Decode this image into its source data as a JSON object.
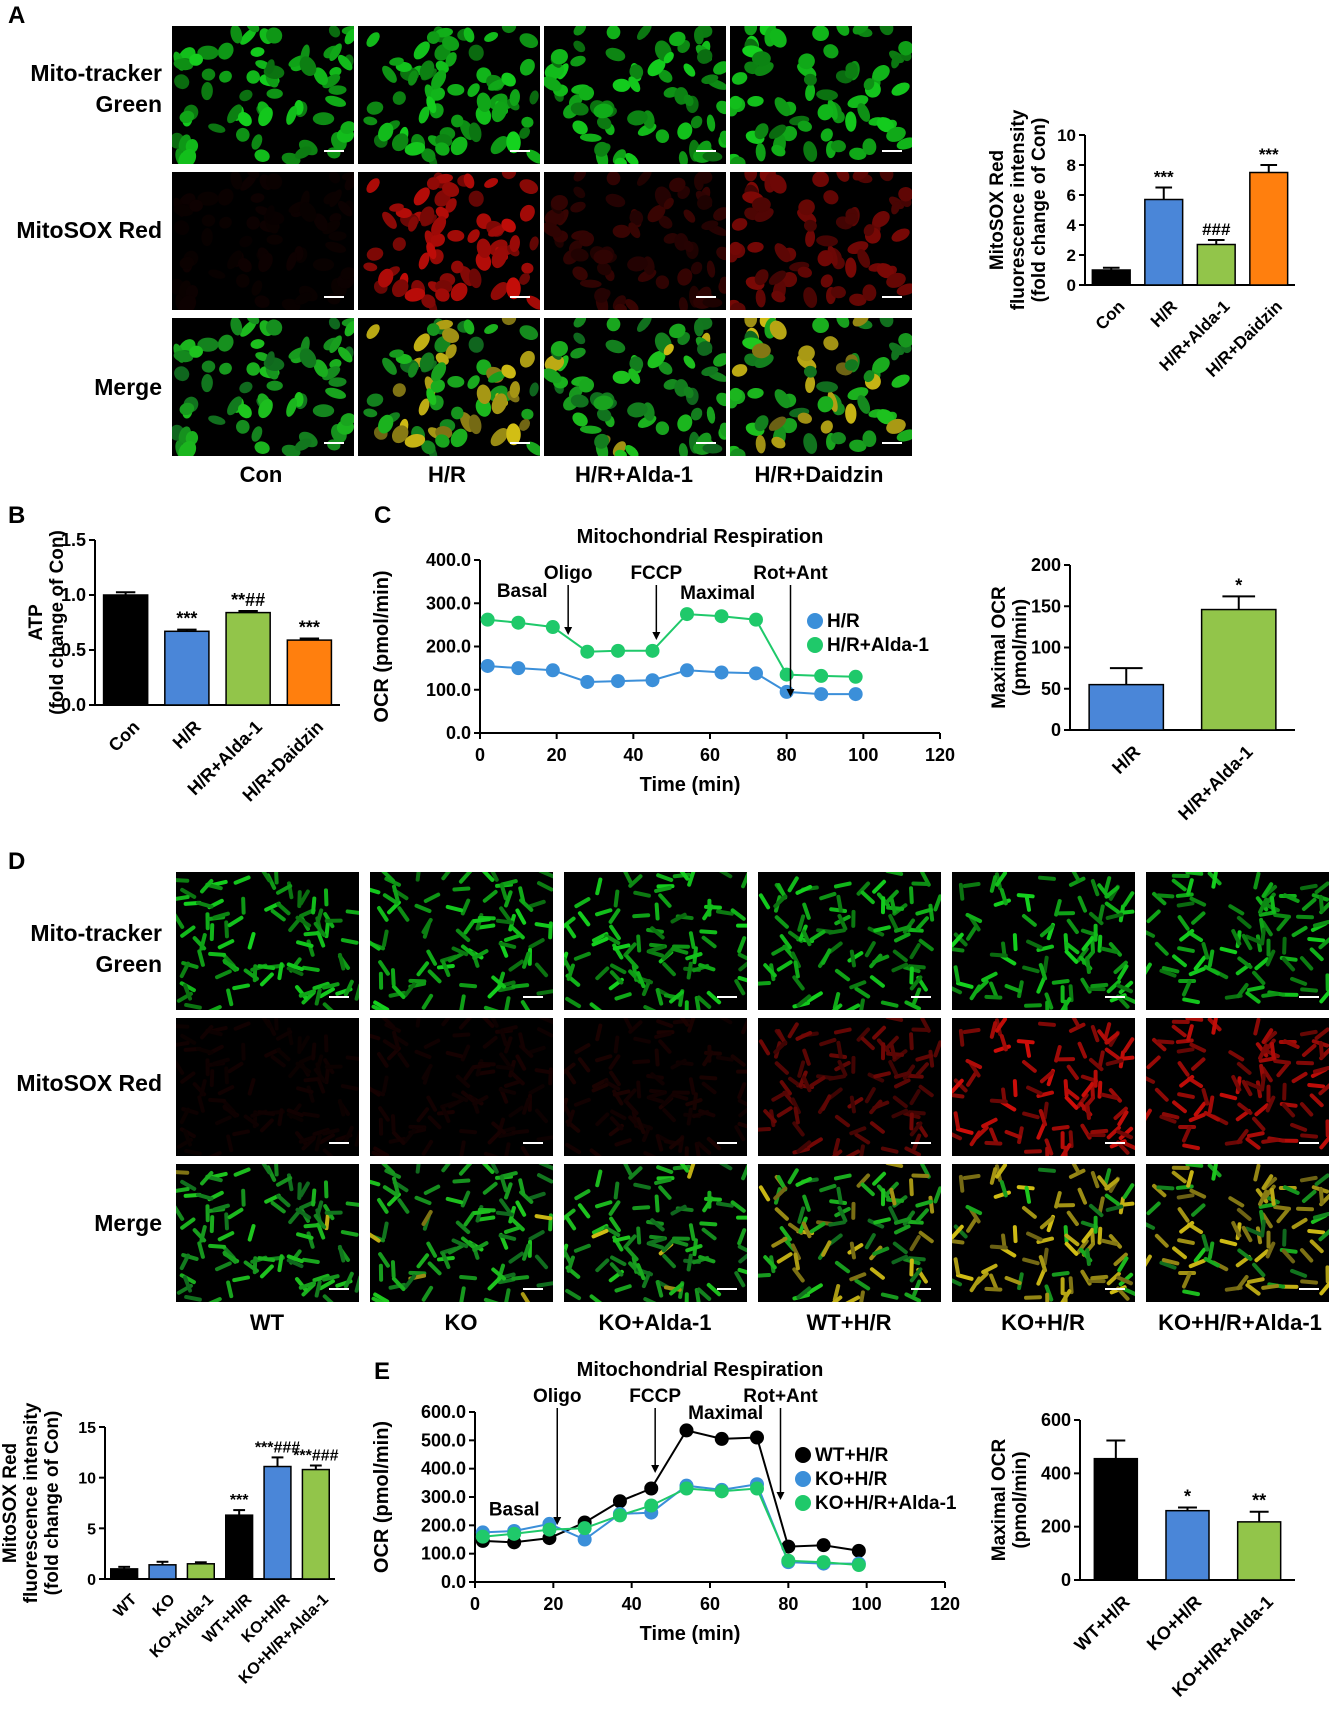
{
  "panel_letters": {
    "a": "A",
    "b": "B",
    "c": "C",
    "d": "D",
    "e": "E"
  },
  "panelA": {
    "rows": [
      "Mito-tracker Green",
      "MitoSOX Red",
      "Merge"
    ],
    "row_keys": [
      "green",
      "red",
      "merge"
    ],
    "columns": [
      "Con",
      "H/R",
      "H/R+Alda-1",
      "H/R+Daidzin"
    ],
    "red_level": [
      0.06,
      0.85,
      0.25,
      0.55
    ],
    "yellow_level": [
      0.0,
      0.5,
      0.1,
      0.35
    ]
  },
  "panelD": {
    "rows": [
      "Mito-tracker Green",
      "MitoSOX Red",
      "Merge"
    ],
    "row_keys": [
      "green",
      "red",
      "merge"
    ],
    "columns": [
      "WT",
      "KO",
      "KO+Alda-1",
      "WT+H/R",
      "KO+H/R",
      "KO+H/R+Alda-1"
    ],
    "red_level": [
      0.08,
      0.1,
      0.12,
      0.5,
      0.9,
      0.85
    ],
    "yellow_level": [
      0.02,
      0.05,
      0.05,
      0.3,
      0.7,
      0.65
    ]
  },
  "colors": {
    "black": "#000000",
    "blue": "#4a86d8",
    "green": "#92c54a",
    "orange": "#ff7f0e",
    "line_blue": "#3b8fd9",
    "line_green": "#1fc96a",
    "line_black": "#000000"
  },
  "chart_data": [
    {
      "id": "A-bar",
      "type": "bar",
      "ylabel_lines": [
        "MitoSOX Red",
        "fluorescence intensity",
        "(fold change of Con)"
      ],
      "categories": [
        "Con",
        "H/R",
        "H/R+Alda-1",
        "H/R+Daidzin"
      ],
      "values": [
        1.0,
        5.7,
        2.7,
        7.5
      ],
      "errors": [
        0.15,
        0.8,
        0.3,
        0.5
      ],
      "annotations": [
        "",
        "***",
        "###",
        "***"
      ],
      "bar_colors": [
        "black",
        "blue",
        "green",
        "orange"
      ],
      "ylim": [
        0,
        10
      ],
      "yticks": [
        0,
        2,
        4,
        6,
        8,
        10
      ],
      "ytick_labels": [
        "0",
        "2",
        "4",
        "6",
        "8",
        "10"
      ]
    },
    {
      "id": "B-bar",
      "type": "bar",
      "ylabel_lines": [
        "ATP",
        "(fold change of Con)"
      ],
      "categories": [
        "Con",
        "H/R",
        "H/R+Alda-1",
        "H/R+Daidzin"
      ],
      "values": [
        1.0,
        0.67,
        0.84,
        0.59
      ],
      "errors": [
        0.025,
        0.015,
        0.015,
        0.015
      ],
      "annotations": [
        "",
        "***",
        "**##",
        "***"
      ],
      "bar_colors": [
        "black",
        "blue",
        "green",
        "orange"
      ],
      "ylim": [
        0,
        1.5
      ],
      "yticks": [
        0,
        0.5,
        1.0,
        1.5
      ],
      "ytick_labels": [
        "0.0",
        "0.5",
        "1.0",
        "1.5"
      ]
    },
    {
      "id": "C-line",
      "type": "line",
      "title": "Mitochondrial Respiration",
      "xlabel": "Time (min)",
      "ylabel": "OCR (pmol/min)",
      "xlim": [
        0,
        120
      ],
      "xticks": [
        0,
        20,
        40,
        60,
        80,
        100,
        120
      ],
      "xtick_labels": [
        "0",
        "20",
        "40",
        "60",
        "80",
        "100",
        "120"
      ],
      "ylim": [
        0,
        400
      ],
      "yticks": [
        0,
        100,
        200,
        300,
        400
      ],
      "ytick_labels": [
        "0.0",
        "100.0",
        "200.0",
        "300.0",
        "400.0"
      ],
      "x": [
        2,
        10,
        19,
        28,
        36,
        45,
        54,
        63,
        72,
        80,
        89,
        98
      ],
      "series": [
        {
          "name": "H/R",
          "color": "line_blue",
          "values": [
            155,
            150,
            145,
            118,
            120,
            122,
            145,
            140,
            138,
            95,
            90,
            90
          ]
        },
        {
          "name": "H/R+Alda-1",
          "color": "line_green",
          "values": [
            262,
            255,
            245,
            188,
            190,
            190,
            275,
            270,
            262,
            135,
            132,
            130
          ]
        }
      ],
      "phase_labels": [
        {
          "text": "Basal",
          "x": 11,
          "y": 315
        },
        {
          "text": "Maximal",
          "x": 62,
          "y": 310
        }
      ],
      "arrows": [
        {
          "text": "Oligo",
          "x": 23
        },
        {
          "text": "FCCP",
          "x": 46
        },
        {
          "text": "Rot+Ant",
          "x": 81
        }
      ]
    },
    {
      "id": "C-bar",
      "type": "bar",
      "ylabel_lines": [
        "Maximal OCR",
        "(pmol/min)"
      ],
      "categories": [
        "H/R",
        "H/R+Alda-1"
      ],
      "values": [
        55,
        146
      ],
      "errors": [
        20,
        16
      ],
      "annotations": [
        "",
        "*"
      ],
      "bar_colors": [
        "blue",
        "green"
      ],
      "ylim": [
        0,
        200
      ],
      "yticks": [
        0,
        50,
        100,
        150,
        200
      ],
      "ytick_labels": [
        "0",
        "50",
        "100",
        "150",
        "200"
      ]
    },
    {
      "id": "D-bar",
      "type": "bar",
      "ylabel_lines": [
        "MitoSOX Red",
        "fluorescence intensity",
        "(fold change of Con)"
      ],
      "categories": [
        "WT",
        "KO",
        "KO+Alda-1",
        "WT+H/R",
        "KO+H/R",
        "KO+H/R+Alda-1"
      ],
      "values": [
        1.0,
        1.4,
        1.5,
        6.3,
        11.1,
        10.8
      ],
      "errors": [
        0.2,
        0.3,
        0.15,
        0.5,
        0.9,
        0.4
      ],
      "annotations": [
        "",
        "",
        "",
        "***",
        "***###",
        "***###"
      ],
      "bar_colors": [
        "black",
        "blue",
        "green",
        "black",
        "blue",
        "green"
      ],
      "ylim": [
        0,
        15
      ],
      "yticks": [
        0,
        5,
        10,
        15
      ],
      "ytick_labels": [
        "0",
        "5",
        "10",
        "15"
      ]
    },
    {
      "id": "E-line",
      "type": "line",
      "title": "Mitochondrial Respiration",
      "xlabel": "Time (min)",
      "ylabel": "OCR (pmol/min)",
      "xlim": [
        0,
        120
      ],
      "xticks": [
        0,
        20,
        40,
        60,
        80,
        100,
        120
      ],
      "xtick_labels": [
        "0",
        "20",
        "40",
        "60",
        "80",
        "100",
        "120"
      ],
      "ylim": [
        0,
        600
      ],
      "yticks": [
        0,
        100,
        200,
        300,
        400,
        500,
        600
      ],
      "ytick_labels": [
        "0.0",
        "100.0",
        "200.0",
        "300.0",
        "400.0",
        "500.0",
        "600.0"
      ],
      "x": [
        2,
        10,
        19,
        28,
        37,
        45,
        54,
        63,
        72,
        80,
        89,
        98
      ],
      "series": [
        {
          "name": "WT+H/R",
          "color": "line_black",
          "values": [
            145,
            140,
            155,
            210,
            285,
            330,
            535,
            505,
            510,
            125,
            130,
            110
          ]
        },
        {
          "name": "KO+H/R",
          "color": "line_blue",
          "values": [
            175,
            180,
            205,
            150,
            240,
            245,
            340,
            325,
            345,
            70,
            65,
            65
          ]
        },
        {
          "name": "KO+H/R+Alda-1",
          "color": "line_green",
          "values": [
            160,
            170,
            185,
            190,
            235,
            270,
            330,
            320,
            330,
            75,
            70,
            60
          ]
        }
      ],
      "phase_labels": [
        {
          "text": "Basal",
          "x": 10,
          "y": 235
        },
        {
          "text": "Maximal",
          "x": 64,
          "y": 575
        }
      ],
      "arrows": [
        {
          "text": "Oligo",
          "x": 21
        },
        {
          "text": "FCCP",
          "x": 46
        },
        {
          "text": "Rot+Ant",
          "x": 78
        }
      ]
    },
    {
      "id": "E-bar",
      "type": "bar",
      "ylabel_lines": [
        "Maximal OCR",
        "(pmol/min)"
      ],
      "categories": [
        "WT+H/R",
        "KO+H/R",
        "KO+H/R+Alda-1"
      ],
      "values": [
        455,
        260,
        218
      ],
      "errors": [
        68,
        12,
        38
      ],
      "annotations": [
        "",
        "*",
        "**"
      ],
      "bar_colors": [
        "black",
        "blue",
        "green"
      ],
      "ylim": [
        0,
        600
      ],
      "yticks": [
        0,
        200,
        400,
        600
      ],
      "ytick_labels": [
        "0",
        "200",
        "400",
        "600"
      ]
    }
  ]
}
